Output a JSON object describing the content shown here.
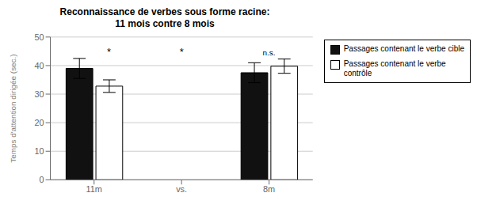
{
  "chart_data": {
    "type": "bar",
    "title": "Reconnaissance de verbes sous forme racine:\n11 mois contre 8 mois",
    "ylabel": "Temps d'attention dirigée (sec.)",
    "categories": [
      "11m",
      "vs.",
      "8m"
    ],
    "series": [
      {
        "name": "Passages contenant le verbe cible",
        "color": "#111111",
        "values": [
          39.0,
          null,
          37.5
        ],
        "errors": [
          3.5,
          null,
          3.5
        ]
      },
      {
        "name": "Passages contenant le verbe\ncontrôle",
        "color": "#ffffff",
        "values": [
          32.8,
          null,
          39.8
        ],
        "errors": [
          2.2,
          null,
          2.5
        ]
      }
    ],
    "ylim": [
      0,
      50
    ],
    "yticks": [
      0,
      10,
      20,
      30,
      40,
      50
    ],
    "grid": true,
    "legend": "right",
    "annotations": [
      {
        "text": "*",
        "category": "11m",
        "series": "Passages contenant le verbe\ncontrôle"
      },
      {
        "text": "*",
        "category": "vs."
      },
      {
        "text": "n.s.",
        "category": "8m"
      }
    ]
  }
}
